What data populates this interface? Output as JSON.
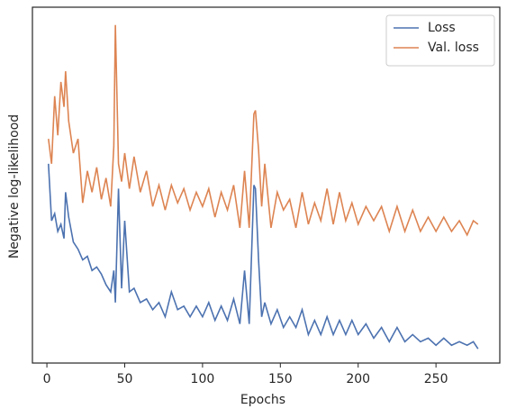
{
  "chart_data": {
    "type": "line",
    "xlabel": "Epochs",
    "ylabel": "Negative log-likelihood",
    "x": [
      1,
      3,
      5,
      7,
      9,
      11,
      12,
      14,
      17,
      20,
      23,
      26,
      29,
      32,
      35,
      38,
      41,
      43,
      44,
      46,
      48,
      50,
      53,
      56,
      60,
      64,
      68,
      72,
      76,
      80,
      84,
      88,
      92,
      96,
      100,
      104,
      108,
      112,
      116,
      120,
      124,
      127,
      130,
      133,
      134,
      136,
      138,
      140,
      144,
      148,
      152,
      156,
      160,
      164,
      168,
      172,
      176,
      180,
      184,
      188,
      192,
      196,
      200,
      205,
      210,
      215,
      220,
      225,
      230,
      235,
      240,
      245,
      250,
      255,
      260,
      265,
      270,
      274,
      277
    ],
    "series": [
      {
        "name": "Loss",
        "color": "#4c72b0",
        "values": [
          0.56,
          0.4,
          0.42,
          0.37,
          0.39,
          0.35,
          0.48,
          0.41,
          0.34,
          0.32,
          0.29,
          0.3,
          0.26,
          0.27,
          0.25,
          0.22,
          0.2,
          0.26,
          0.17,
          0.49,
          0.21,
          0.4,
          0.2,
          0.21,
          0.17,
          0.18,
          0.15,
          0.17,
          0.13,
          0.2,
          0.15,
          0.16,
          0.13,
          0.16,
          0.13,
          0.17,
          0.12,
          0.16,
          0.12,
          0.18,
          0.11,
          0.26,
          0.11,
          0.5,
          0.49,
          0.29,
          0.13,
          0.17,
          0.11,
          0.15,
          0.1,
          0.13,
          0.1,
          0.15,
          0.08,
          0.12,
          0.08,
          0.13,
          0.08,
          0.12,
          0.08,
          0.12,
          0.08,
          0.11,
          0.07,
          0.1,
          0.06,
          0.1,
          0.06,
          0.08,
          0.06,
          0.07,
          0.05,
          0.07,
          0.05,
          0.06,
          0.05,
          0.06,
          0.04
        ]
      },
      {
        "name": "Val. loss",
        "color": "#dd8452",
        "values": [
          0.63,
          0.56,
          0.75,
          0.64,
          0.79,
          0.72,
          0.82,
          0.68,
          0.59,
          0.63,
          0.45,
          0.54,
          0.48,
          0.55,
          0.46,
          0.52,
          0.44,
          0.61,
          0.95,
          0.56,
          0.51,
          0.59,
          0.49,
          0.58,
          0.48,
          0.54,
          0.44,
          0.5,
          0.43,
          0.5,
          0.45,
          0.49,
          0.43,
          0.48,
          0.44,
          0.49,
          0.41,
          0.48,
          0.43,
          0.5,
          0.38,
          0.54,
          0.38,
          0.7,
          0.71,
          0.6,
          0.44,
          0.56,
          0.38,
          0.48,
          0.43,
          0.46,
          0.38,
          0.48,
          0.39,
          0.45,
          0.4,
          0.49,
          0.39,
          0.48,
          0.4,
          0.45,
          0.39,
          0.44,
          0.4,
          0.44,
          0.37,
          0.44,
          0.37,
          0.43,
          0.37,
          0.41,
          0.37,
          0.41,
          0.37,
          0.4,
          0.36,
          0.4,
          0.39
        ]
      }
    ],
    "xlim": [
      -9.3,
      291
    ],
    "ylim": [
      0,
      1
    ],
    "xticks": [
      0,
      50,
      100,
      150,
      200,
      250
    ],
    "legend": "upper right"
  }
}
